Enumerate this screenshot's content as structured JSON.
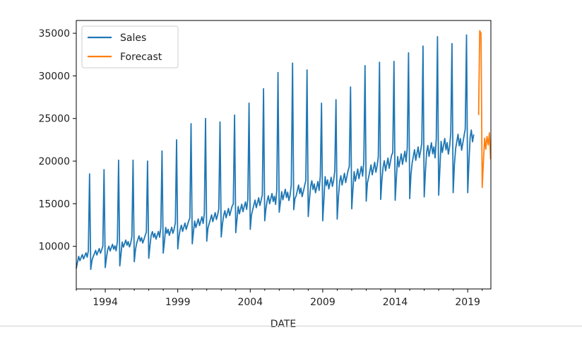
{
  "chart_data": {
    "type": "line",
    "title": "",
    "xlabel": "DATE",
    "ylabel": "",
    "xlim": [
      1992.0,
      2020.6
    ],
    "ylim": [
      5000,
      36500
    ],
    "x_tick_labels": [
      "1994",
      "1999",
      "2004",
      "2009",
      "2014",
      "2019"
    ],
    "x_tick_values": [
      1994,
      1999,
      2004,
      2009,
      2014,
      2019
    ],
    "y_tick_labels": [
      "10000",
      "15000",
      "20000",
      "25000",
      "30000",
      "35000"
    ],
    "y_tick_values": [
      10000,
      15000,
      20000,
      25000,
      30000,
      35000
    ],
    "grid": false,
    "legend_position": "upper-left",
    "legend": [
      {
        "label": "Sales",
        "color": "#1f77b4"
      },
      {
        "label": "Forecast",
        "color": "#ff7f0e"
      }
    ],
    "series": [
      {
        "name": "Sales",
        "color": "#1f77b4",
        "frequency": "monthly",
        "start": "1992-01",
        "end": "2019-06",
        "annual_peaks": [
          18500,
          19000,
          20100,
          20100,
          20000,
          21200,
          22500,
          24400,
          25000,
          24600,
          25400,
          26800,
          28500,
          30400,
          31500,
          30700,
          26800,
          27200,
          28700,
          31200,
          31600,
          31700,
          32700,
          33500,
          34600,
          33800,
          34800
        ],
        "annual_lows": [
          7400,
          7300,
          7500,
          7700,
          8200,
          8600,
          9200,
          9700,
          10300,
          10600,
          11100,
          11600,
          12000,
          13000,
          14000,
          14300,
          13500,
          13000,
          13200,
          14400,
          15300,
          15500,
          15400,
          15600,
          15800,
          16000,
          16300
        ],
        "baseline_start": 8500,
        "baseline_end": 22500
      },
      {
        "name": "Forecast",
        "color": "#ff7f0e",
        "points": [
          {
            "x": 2019.75,
            "y": 25400
          },
          {
            "x": 2019.83,
            "y": 35300
          },
          {
            "x": 2019.92,
            "y": 35000
          },
          {
            "x": 2020.0,
            "y": 16900
          },
          {
            "x": 2020.08,
            "y": 19800
          },
          {
            "x": 2020.17,
            "y": 22700
          },
          {
            "x": 2020.25,
            "y": 21400
          },
          {
            "x": 2020.33,
            "y": 22900
          },
          {
            "x": 2020.42,
            "y": 21900
          },
          {
            "x": 2020.5,
            "y": 23300
          },
          {
            "x": 2020.58,
            "y": 20200
          }
        ]
      }
    ]
  }
}
